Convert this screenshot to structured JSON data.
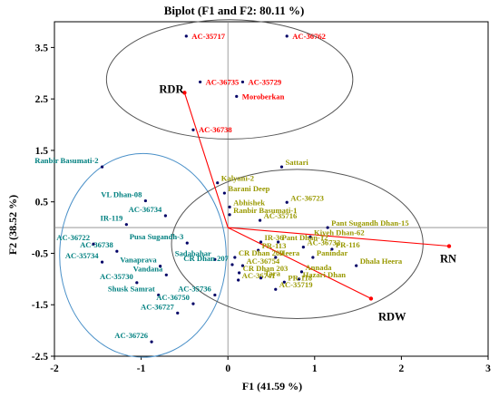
{
  "chart_data": {
    "type": "scatter",
    "title": "Biplot (F1 and F2: 80.11 %)",
    "xlabel": "F1 (41.59 %)",
    "ylabel": "F2 (38.52 %)",
    "xlim": [
      -2,
      3
    ],
    "ylim": [
      -2.5,
      4
    ],
    "xticks": [
      "-2",
      "-1",
      "0",
      "1",
      "2",
      "3"
    ],
    "yticks": [
      "3.5",
      "2.5",
      "1.5",
      "0.5",
      "-0.5",
      "-1.5",
      "-2.5"
    ],
    "ytick_values": [
      3.5,
      2.5,
      1.5,
      0.5,
      -0.5,
      -1.5,
      -2.5
    ],
    "grid": false,
    "colors": {
      "red_group": "#ff0000",
      "green_group": "#008080",
      "olive_group": "#999900",
      "point": "#000066",
      "vector": "#ff0000",
      "axis": "#000000",
      "ellipse_top": "#555555",
      "ellipse_left": "#4a90c8",
      "ellipse_right": "#555555"
    },
    "groups": {
      "red": [
        {
          "label": "AC-35717",
          "x": -0.48,
          "y": 3.72
        },
        {
          "label": "AC-36762",
          "x": 0.68,
          "y": 3.72
        },
        {
          "label": "AC-36735",
          "x": -0.32,
          "y": 2.83
        },
        {
          "label": "AC-35729",
          "x": 0.17,
          "y": 2.83
        },
        {
          "label": "Moroberkan",
          "x": 0.1,
          "y": 2.55
        },
        {
          "label": "AC-36738",
          "x": -0.4,
          "y": 1.9
        }
      ],
      "green": [
        {
          "label": "Ranbir Basumati-2",
          "x": -1.45,
          "y": 1.18
        },
        {
          "label": "VL Dhan-08",
          "x": -0.95,
          "y": 0.52
        },
        {
          "label": "AC-36734",
          "x": -0.72,
          "y": 0.23
        },
        {
          "label": "IR-119",
          "x": -1.17,
          "y": 0.06
        },
        {
          "label": "Pusa Sugandh-3",
          "x": -0.47,
          "y": -0.3
        },
        {
          "label": "Sadabahar",
          "x": -0.15,
          "y": -0.62
        },
        {
          "label": "CR Dhan 207",
          "x": 0.05,
          "y": -0.72
        },
        {
          "label": "AC-36722",
          "x": -1.55,
          "y": -0.32
        },
        {
          "label": "AC-36738",
          "x": -1.28,
          "y": -0.46
        },
        {
          "label": "AC-35734",
          "x": -1.45,
          "y": -0.67
        },
        {
          "label": "Vanaprava",
          "x": -0.78,
          "y": -0.75
        },
        {
          "label": "Vandana",
          "x": -0.71,
          "y": -0.92
        },
        {
          "label": "AC-35730",
          "x": -1.05,
          "y": -1.07
        },
        {
          "label": "Shusk Samrat",
          "x": -0.8,
          "y": -1.31
        },
        {
          "label": "AC-35736",
          "x": -0.15,
          "y": -1.31
        },
        {
          "label": "AC-36750",
          "x": -0.4,
          "y": -1.48
        },
        {
          "label": "AC-36727",
          "x": -0.58,
          "y": -1.66
        },
        {
          "label": "AC-36726",
          "x": -0.88,
          "y": -2.22
        }
      ],
      "olive": [
        {
          "label": "Sattari",
          "x": 0.62,
          "y": 1.18
        },
        {
          "label": "Kalyani-2",
          "x": -0.12,
          "y": 0.87
        },
        {
          "label": "Barani Deep",
          "x": -0.04,
          "y": 0.67
        },
        {
          "label": "Abhishek",
          "x": 0.02,
          "y": 0.4
        },
        {
          "label": "AC-36723",
          "x": 0.68,
          "y": 0.49
        },
        {
          "label": "Ranbir Basumati-1",
          "x": 0.02,
          "y": 0.25
        },
        {
          "label": "AC-35716",
          "x": 0.37,
          "y": 0.14
        },
        {
          "label": "Pant Sugandh Dhan-15",
          "x": 1.15,
          "y": 0.0
        },
        {
          "label": "Kiyeh Dhan-62",
          "x": 0.95,
          "y": -0.18
        },
        {
          "label": "IR-36",
          "x": 0.38,
          "y": -0.28
        },
        {
          "label": "PR-113",
          "x": 0.35,
          "y": -0.44
        },
        {
          "label": "Pant Dhan-12",
          "x": 0.58,
          "y": -0.28
        },
        {
          "label": "AC-36732",
          "x": 0.87,
          "y": -0.38
        },
        {
          "label": "PR-116",
          "x": 1.2,
          "y": -0.42
        },
        {
          "label": "CR Dhan 209",
          "x": 0.08,
          "y": -0.58
        },
        {
          "label": "Heera",
          "x": 0.55,
          "y": -0.58
        },
        {
          "label": "Panindar",
          "x": 0.98,
          "y": -0.58
        },
        {
          "label": "AC-36754",
          "x": 0.17,
          "y": -0.74
        },
        {
          "label": "Dhala Heera",
          "x": 1.48,
          "y": -0.74
        },
        {
          "label": "CR Dhan 203",
          "x": 0.13,
          "y": -0.88
        },
        {
          "label": "Annada",
          "x": 0.85,
          "y": -0.86
        },
        {
          "label": "AC-36741",
          "x": 0.12,
          "y": -1.02
        },
        {
          "label": "Tara",
          "x": 0.38,
          "y": -0.98
        },
        {
          "label": "Hazari Dhan",
          "x": 0.82,
          "y": -1.0
        },
        {
          "label": "PR-118",
          "x": 0.65,
          "y": -1.06
        },
        {
          "label": "AC-35719",
          "x": 0.55,
          "y": -1.2
        }
      ]
    },
    "variables": [
      {
        "name": "RDR",
        "x": -0.5,
        "y": 2.62
      },
      {
        "name": "RN",
        "x": 2.55,
        "y": -0.36
      },
      {
        "name": "RDW",
        "x": 1.65,
        "y": -1.38
      }
    ],
    "ellipses": [
      {
        "cx": 0.02,
        "cy": 2.88,
        "rx": 1.42,
        "ry": 1.16,
        "rot": 0
      },
      {
        "cx": -0.98,
        "cy": -0.54,
        "rx": 0.96,
        "ry": 1.98,
        "rot": 0
      },
      {
        "cx": 0.8,
        "cy": -0.32,
        "rx": 1.45,
        "ry": 1.45,
        "rot": 0
      }
    ]
  }
}
